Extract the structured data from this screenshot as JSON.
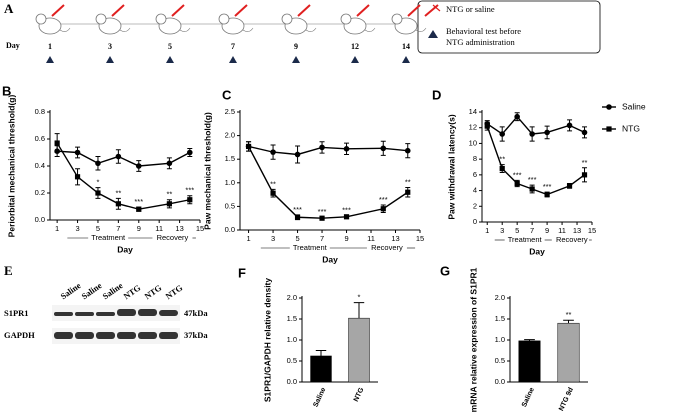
{
  "timeline": {
    "panel": "A",
    "day_label": "Day",
    "days": [
      1,
      3,
      5,
      7,
      9,
      12,
      14
    ],
    "legend_injection": "NTG or saline",
    "legend_test_lines": [
      "Behavioral test before",
      "NTG administration"
    ]
  },
  "blot": {
    "panel": "E",
    "lanes": [
      "Saline",
      "Saline",
      "Saline",
      "NTG",
      "NTG",
      "NTG"
    ],
    "rows": [
      {
        "name": "S1PR1",
        "size": "47kDa"
      },
      {
        "name": "GAPDH",
        "size": "37kDa"
      }
    ]
  },
  "chart_data": [
    {
      "type": "line",
      "panel": "B",
      "y_label": "Periorbital mechanical threshold(g)",
      "x_label": "Day",
      "phases": [
        "Treatment",
        "Recovery"
      ],
      "x": [
        1,
        3,
        5,
        7,
        9,
        12,
        14
      ],
      "xlim": [
        0.3,
        15
      ],
      "xticks": [
        1,
        3,
        5,
        7,
        9,
        11,
        13,
        15
      ],
      "ylim": [
        0,
        0.8
      ],
      "yticks": [
        {
          "value": 0,
          "label": "0.0"
        },
        0.2,
        0.4,
        0.6,
        0.8
      ],
      "series": [
        {
          "marker": "circle",
          "color": "#000000",
          "values": [
            0.51,
            0.5,
            0.42,
            0.47,
            0.4,
            0.42,
            0.5
          ],
          "errors": [
            0.04,
            0.04,
            0.05,
            0.05,
            0.04,
            0.04,
            0.03
          ]
        },
        {
          "marker": "square",
          "color": "#000000",
          "values": [
            0.57,
            0.32,
            0.2,
            0.12,
            0.08,
            0.12,
            0.15
          ],
          "errors": [
            0.07,
            0.06,
            0.04,
            0.04,
            0.015,
            0.03,
            0.03
          ],
          "significance": [
            null,
            null,
            "*",
            "**",
            "***",
            "**",
            "***"
          ]
        }
      ]
    },
    {
      "type": "line",
      "panel": "C",
      "y_label": "Paw mechanical threshold(g)",
      "x_label": "Day",
      "phases": [
        "Treatment",
        "Recovery"
      ],
      "x": [
        1,
        3,
        5,
        7,
        9,
        12,
        14
      ],
      "xlim": [
        0.3,
        15
      ],
      "xticks": [
        1,
        3,
        5,
        7,
        9,
        11,
        13,
        15
      ],
      "ylim": [
        0,
        2.5
      ],
      "yticks": [
        {
          "value": 0,
          "label": "0.0"
        },
        0.5,
        {
          "value": 1,
          "label": "1.0"
        },
        1.5,
        {
          "value": 2,
          "label": "2.0"
        },
        2.5
      ],
      "series": [
        {
          "marker": "circle",
          "color": "#000000",
          "values": [
            1.77,
            1.65,
            1.6,
            1.75,
            1.72,
            1.73,
            1.68
          ],
          "errors": [
            0.1,
            0.15,
            0.18,
            0.12,
            0.12,
            0.15,
            0.15
          ]
        },
        {
          "marker": "square",
          "color": "#000000",
          "values": [
            1.77,
            0.78,
            0.27,
            0.25,
            0.28,
            0.45,
            0.8
          ],
          "errors": [
            0.1,
            0.08,
            0.05,
            0.03,
            0.03,
            0.08,
            0.1
          ],
          "significance": [
            null,
            "**",
            "***",
            "***",
            "***",
            "***",
            "**"
          ]
        }
      ]
    },
    {
      "type": "line",
      "panel": "D",
      "y_label": "Paw withdrawal latency(s)",
      "x_label": "Day",
      "phases": [
        "Treatment",
        "Recovery"
      ],
      "legend": "right",
      "x": [
        1,
        3,
        5,
        7,
        9,
        12,
        14
      ],
      "xlim": [
        0.3,
        15
      ],
      "xticks": [
        1,
        3,
        5,
        7,
        9,
        11,
        13,
        15
      ],
      "ylim": [
        0,
        14
      ],
      "yticks": [
        0,
        2,
        4,
        6,
        8,
        10,
        12,
        14
      ],
      "series": [
        {
          "name": "Saline",
          "marker": "circle",
          "color": "#000000",
          "values": [
            12.5,
            11.2,
            13.4,
            11.2,
            11.4,
            12.3,
            11.4
          ],
          "errors": [
            0.4,
            0.9,
            0.5,
            0.9,
            0.8,
            0.7,
            0.7
          ]
        },
        {
          "name": "NTG",
          "marker": "square",
          "color": "#000000",
          "values": [
            12.2,
            6.8,
            4.9,
            4.2,
            3.5,
            4.6,
            6.0
          ],
          "errors": [
            0.5,
            0.5,
            0.4,
            0.5,
            0.3,
            0.3,
            0.9
          ],
          "significance": [
            null,
            "**",
            "***",
            "***",
            "***",
            null,
            "**"
          ]
        }
      ]
    },
    {
      "type": "bar",
      "panel": "F",
      "y_label": "S1PR1/GAPDH relative density",
      "categories": [
        "Saline",
        "NTG"
      ],
      "values": [
        0.62,
        1.52
      ],
      "errors": [
        0.13,
        0.37
      ],
      "colors": [
        "#000000",
        "#a6a6a6"
      ],
      "significance": [
        null,
        "*"
      ],
      "ylim": [
        0,
        2.0
      ],
      "yticks": [
        {
          "value": 0,
          "label": "0.0"
        },
        0.5,
        {
          "value": 1,
          "label": "1.0"
        },
        1.5,
        {
          "value": 2,
          "label": "2.0"
        }
      ]
    },
    {
      "type": "bar",
      "panel": "G",
      "y_label": "mRNA relative expression of S1PR1",
      "categories": [
        "Saline",
        "NTG 9d"
      ],
      "values": [
        0.98,
        1.4
      ],
      "errors": [
        0.03,
        0.07
      ],
      "colors": [
        "#000000",
        "#a6a6a6"
      ],
      "significance": [
        null,
        "**"
      ],
      "ylim": [
        0,
        2.0
      ],
      "yticks": [
        {
          "value": 0,
          "label": "0.0"
        },
        0.5,
        {
          "value": 1,
          "label": "1.0"
        },
        1.5,
        {
          "value": 2,
          "label": "2.0"
        }
      ]
    }
  ]
}
